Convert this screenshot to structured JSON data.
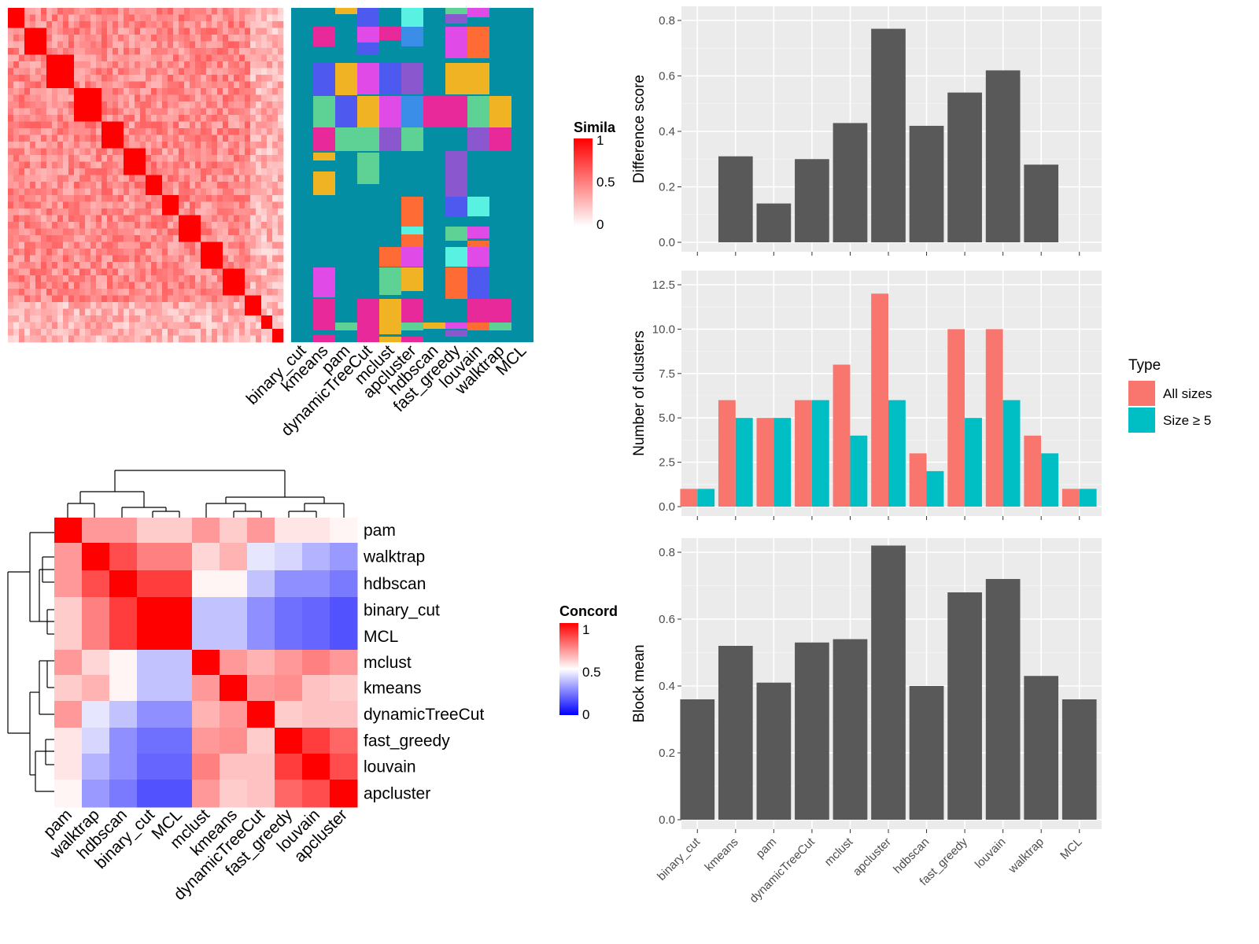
{
  "method_order": [
    "binary_cut",
    "kmeans",
    "pam",
    "dynamicTreeCut",
    "mclust",
    "apcluster",
    "hdbscan",
    "fast_greedy",
    "louvain",
    "walktrap",
    "MCL"
  ],
  "legends": {
    "similarity": {
      "title": "Simila",
      "ticks": [
        "1",
        "0.5",
        "0"
      ],
      "colors": [
        "#ffffff",
        "#ff0000"
      ]
    },
    "concordance": {
      "title": "Concord",
      "ticks": [
        "1",
        "0.5",
        "0"
      ],
      "colors": [
        "#0000ff",
        "#ffffff",
        "#ff0000"
      ]
    },
    "type": {
      "title": "Type",
      "items": [
        {
          "label": "All sizes",
          "color": "#F8766D"
        },
        {
          "label": "Size ≥ 5",
          "color": "#00BFC4"
        }
      ]
    }
  },
  "chart_data": [
    {
      "type": "heatmap",
      "ticks": [
        "binary_cut",
        "kmeans",
        "pam",
        "dynamicTreeCut",
        "mclust",
        "apcluster",
        "hdbscan",
        "fast_greedy",
        "louvain",
        "walktrap",
        "MCL"
      ],
      "note_hidden": ""
    },
    {
      "type": "heatmap",
      "rows": [
        "pam",
        "walktrap",
        "hdbscan",
        "binary_cut",
        "MCL",
        "mclust",
        "kmeans",
        "dynamicTreeCut",
        "fast_greedy",
        "louvain",
        "apcluster"
      ],
      "cols": [
        "pam",
        "walktrap",
        "hdbscan",
        "binary_cut",
        "MCL",
        "mclust",
        "kmeans",
        "dynamicTreeCut",
        "fast_greedy",
        "louvain",
        "apcluster"
      ],
      "values": [
        [
          1.0,
          0.7,
          0.7,
          0.6,
          0.6,
          0.7,
          0.6,
          0.7,
          0.55,
          0.55,
          0.52
        ],
        [
          0.7,
          1.0,
          0.85,
          0.75,
          0.75,
          0.58,
          0.65,
          0.45,
          0.42,
          0.35,
          0.3
        ],
        [
          0.7,
          0.85,
          1.0,
          0.88,
          0.88,
          0.52,
          0.52,
          0.38,
          0.28,
          0.28,
          0.24
        ],
        [
          0.6,
          0.75,
          0.88,
          1.0,
          1.0,
          0.38,
          0.38,
          0.28,
          0.22,
          0.2,
          0.16
        ],
        [
          0.6,
          0.75,
          0.88,
          1.0,
          1.0,
          0.38,
          0.38,
          0.28,
          0.22,
          0.2,
          0.16
        ],
        [
          0.7,
          0.58,
          0.52,
          0.38,
          0.38,
          1.0,
          0.7,
          0.65,
          0.7,
          0.75,
          0.7
        ],
        [
          0.6,
          0.65,
          0.52,
          0.38,
          0.38,
          0.7,
          1.0,
          0.7,
          0.72,
          0.62,
          0.6
        ],
        [
          0.7,
          0.45,
          0.38,
          0.28,
          0.28,
          0.65,
          0.7,
          1.0,
          0.6,
          0.62,
          0.62
        ],
        [
          0.55,
          0.42,
          0.28,
          0.22,
          0.22,
          0.7,
          0.72,
          0.6,
          1.0,
          0.88,
          0.8
        ],
        [
          0.55,
          0.35,
          0.28,
          0.2,
          0.2,
          0.75,
          0.62,
          0.62,
          0.88,
          1.0,
          0.85
        ],
        [
          0.52,
          0.3,
          0.24,
          0.16,
          0.16,
          0.7,
          0.6,
          0.62,
          0.8,
          0.85,
          1.0
        ]
      ],
      "clim": [
        0,
        1
      ]
    },
    {
      "type": "bar",
      "categories": [
        "binary_cut",
        "kmeans",
        "pam",
        "dynamicTreeCut",
        "mclust",
        "apcluster",
        "hdbscan",
        "fast_greedy",
        "louvain",
        "walktrap",
        "MCL"
      ],
      "values": [
        0,
        0.31,
        0.14,
        0.3,
        0.43,
        0.77,
        0.42,
        0.54,
        0.62,
        0.28,
        0
      ],
      "ylabel": "Difference score",
      "ylim": [
        0,
        0.8
      ],
      "yticks": [
        "0.0",
        "0.2",
        "0.4",
        "0.6",
        "0.8"
      ],
      "yticks_num": [
        0,
        0.2,
        0.4,
        0.6,
        0.8
      ]
    },
    {
      "type": "bar",
      "categories": [
        "binary_cut",
        "kmeans",
        "pam",
        "dynamicTreeCut",
        "mclust",
        "apcluster",
        "hdbscan",
        "fast_greedy",
        "louvain",
        "walktrap",
        "MCL"
      ],
      "series": [
        {
          "name": "All sizes",
          "values": [
            1,
            6,
            5,
            6,
            8,
            12,
            3,
            10,
            10,
            4,
            1
          ]
        },
        {
          "name": "Size ≥ 5",
          "values": [
            1,
            5,
            5,
            6,
            4,
            6,
            2,
            5,
            6,
            3,
            1
          ]
        }
      ],
      "ylabel": "Number of clusters",
      "ylim": [
        0,
        12.5
      ],
      "yticks": [
        "0.0",
        "2.5",
        "5.0",
        "7.5",
        "10.0",
        "12.5"
      ],
      "yticks_num": [
        0,
        2.5,
        5,
        7.5,
        10,
        12.5
      ]
    },
    {
      "type": "bar",
      "categories": [
        "binary_cut",
        "kmeans",
        "pam",
        "dynamicTreeCut",
        "mclust",
        "apcluster",
        "hdbscan",
        "fast_greedy",
        "louvain",
        "walktrap",
        "MCL"
      ],
      "values": [
        0.36,
        0.52,
        0.41,
        0.53,
        0.54,
        0.82,
        0.4,
        0.68,
        0.72,
        0.43,
        0.36
      ],
      "ylabel": "Block mean",
      "ylim": [
        0,
        0.8
      ],
      "yticks": [
        "0.0",
        "0.2",
        "0.4",
        "0.6",
        "0.8"
      ],
      "yticks_num": [
        0,
        0.2,
        0.4,
        0.6,
        0.8
      ]
    }
  ]
}
